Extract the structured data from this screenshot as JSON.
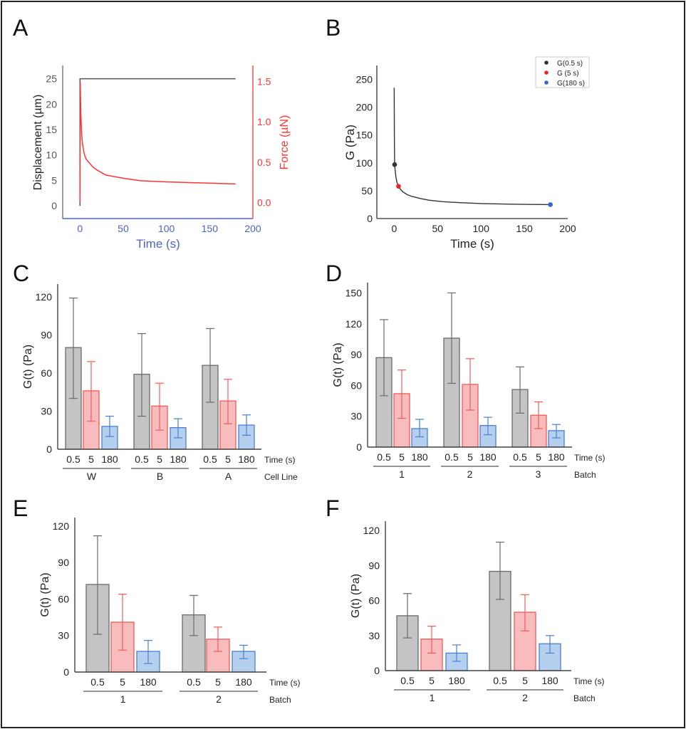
{
  "panel_labels": [
    "A",
    "B",
    "C",
    "D",
    "E",
    "F"
  ],
  "colors": {
    "gray_fill": "#c4c4c4",
    "gray_stroke": "#6b6b6b",
    "red_fill": "#f9bcbc",
    "red_stroke": "#f25a5a",
    "blue_fill": "#b5d0ef",
    "blue_stroke": "#4a7fd0",
    "force": "#ff3333",
    "time_axis": "#4f63c0",
    "g_curve": "#333333",
    "g05": "#333333",
    "g5": "#ee2222",
    "g180": "#3366cc"
  },
  "chart_data": [
    {
      "panel": "A",
      "type": "line",
      "xlabel": "Time (s)",
      "ylabel": "Displacement (µm)",
      "y2label": "Force (µN)",
      "xlim": [
        -20,
        200
      ],
      "ylim": [
        -2.5,
        27.6
      ],
      "y2lim": [
        -0.2,
        1.7
      ],
      "xticks": [
        "0",
        "50",
        "100",
        "150",
        "200"
      ],
      "yticks": [
        "0",
        "5",
        "10",
        "15",
        "20",
        "25"
      ],
      "y2ticks": [
        "0.0",
        "0.5",
        "1.0",
        "1.5"
      ],
      "displacement": {
        "x": [
          0,
          0,
          180
        ],
        "y": [
          0,
          25,
          25
        ]
      },
      "force": {
        "x": [
          0,
          0.3,
          1,
          2,
          3,
          5,
          7,
          10,
          15,
          20,
          30,
          40,
          50,
          70,
          100,
          130,
          150,
          180
        ],
        "y": [
          0,
          1.5,
          1.1,
          0.84,
          0.72,
          0.6,
          0.54,
          0.5,
          0.44,
          0.4,
          0.34,
          0.32,
          0.3,
          0.27,
          0.255,
          0.245,
          0.24,
          0.23
        ]
      }
    },
    {
      "panel": "B",
      "type": "line",
      "xlabel": "Time (s)",
      "ylabel": "G (Pa)",
      "xlim": [
        -20,
        200
      ],
      "ylim": [
        0,
        275
      ],
      "xticks": [
        "0",
        "50",
        "100",
        "150",
        "200"
      ],
      "yticks": [
        "0",
        "50",
        "100",
        "150",
        "200",
        "250"
      ],
      "curve": {
        "x": [
          0,
          0.2,
          0.5,
          1,
          2,
          3,
          5,
          7,
          10,
          15,
          20,
          30,
          40,
          55,
          70,
          100,
          130,
          150,
          180
        ],
        "y": [
          235,
          150,
          97,
          88,
          75,
          66,
          58,
          53,
          48,
          43,
          40,
          36,
          33,
          30.5,
          29,
          27,
          26,
          25.5,
          25
        ]
      },
      "points": [
        {
          "name": "G(0.5 s)",
          "x": 0.5,
          "y": 97
        },
        {
          "name": "G (5 s)",
          "x": 5,
          "y": 58
        },
        {
          "name": "G(180 s)",
          "x": 180,
          "y": 25
        }
      ],
      "legend": "top-right"
    },
    {
      "panel": "C",
      "type": "bar",
      "ylabel": "G(t) (Pa)",
      "xlabel": "Time (s)",
      "group_label": "Cell Line",
      "ylim": [
        0,
        130
      ],
      "yticks": [
        "0",
        "30",
        "60",
        "90",
        "120"
      ],
      "groups": [
        {
          "label": "W",
          "bars": [
            {
              "time": "0.5",
              "value": 80,
              "low": 40,
              "high": 119
            },
            {
              "time": "5",
              "value": 46,
              "low": 22,
              "high": 69
            },
            {
              "time": "180",
              "value": 18,
              "low": 10,
              "high": 26
            }
          ]
        },
        {
          "label": "B",
          "bars": [
            {
              "time": "0.5",
              "value": 59,
              "low": 26,
              "high": 91
            },
            {
              "time": "5",
              "value": 34,
              "low": 15,
              "high": 52
            },
            {
              "time": "180",
              "value": 17,
              "low": 9,
              "high": 24
            }
          ]
        },
        {
          "label": "A",
          "bars": [
            {
              "time": "0.5",
              "value": 66,
              "low": 37,
              "high": 95
            },
            {
              "time": "5",
              "value": 38,
              "low": 20,
              "high": 55
            },
            {
              "time": "180",
              "value": 19,
              "low": 11,
              "high": 27
            }
          ]
        }
      ]
    },
    {
      "panel": "D",
      "type": "bar",
      "ylabel": "G(t) (Pa)",
      "xlabel": "Time (s)",
      "group_label": "Batch",
      "ylim": [
        0,
        160
      ],
      "yticks": [
        "0",
        "30",
        "60",
        "90",
        "120",
        "150"
      ],
      "groups": [
        {
          "label": "1",
          "bars": [
            {
              "time": "0.5",
              "value": 87,
              "low": 50,
              "high": 124
            },
            {
              "time": "5",
              "value": 52,
              "low": 28,
              "high": 75
            },
            {
              "time": "180",
              "value": 18,
              "low": 10,
              "high": 27
            }
          ]
        },
        {
          "label": "2",
          "bars": [
            {
              "time": "0.5",
              "value": 106,
              "low": 62,
              "high": 150
            },
            {
              "time": "5",
              "value": 61,
              "low": 36,
              "high": 86
            },
            {
              "time": "180",
              "value": 21,
              "low": 12,
              "high": 29
            }
          ]
        },
        {
          "label": "3",
          "bars": [
            {
              "time": "0.5",
              "value": 56,
              "low": 33,
              "high": 78
            },
            {
              "time": "5",
              "value": 31,
              "low": 18,
              "high": 44
            },
            {
              "time": "180",
              "value": 16,
              "low": 9,
              "high": 22
            }
          ]
        }
      ]
    },
    {
      "panel": "E",
      "type": "bar",
      "ylabel": "G(t) (Pa)",
      "xlabel": "Time (s)",
      "group_label": "Batch",
      "ylim": [
        0,
        127
      ],
      "yticks": [
        "0",
        "30",
        "60",
        "90",
        "120"
      ],
      "groups": [
        {
          "label": "1",
          "bars": [
            {
              "time": "0.5",
              "value": 72,
              "low": 31,
              "high": 112
            },
            {
              "time": "5",
              "value": 41,
              "low": 18,
              "high": 64
            },
            {
              "time": "180",
              "value": 17,
              "low": 7,
              "high": 26
            }
          ]
        },
        {
          "label": "2",
          "bars": [
            {
              "time": "0.5",
              "value": 47,
              "low": 30,
              "high": 63
            },
            {
              "time": "5",
              "value": 27,
              "low": 17,
              "high": 37
            },
            {
              "time": "180",
              "value": 17,
              "low": 11,
              "high": 22
            }
          ]
        }
      ]
    },
    {
      "panel": "F",
      "type": "bar",
      "ylabel": "G(t) (Pa)",
      "xlabel": "Time (s)",
      "group_label": "Batch",
      "ylim": [
        0,
        128
      ],
      "yticks": [
        "0",
        "30",
        "60",
        "90",
        "120"
      ],
      "groups": [
        {
          "label": "1",
          "bars": [
            {
              "time": "0.5",
              "value": 47,
              "low": 28,
              "high": 66
            },
            {
              "time": "5",
              "value": 27,
              "low": 15,
              "high": 38
            },
            {
              "time": "180",
              "value": 15,
              "low": 8,
              "high": 22
            }
          ]
        },
        {
          "label": "2",
          "bars": [
            {
              "time": "0.5",
              "value": 85,
              "low": 61,
              "high": 110
            },
            {
              "time": "5",
              "value": 50,
              "low": 34,
              "high": 65
            },
            {
              "time": "180",
              "value": 23,
              "low": 15,
              "high": 30
            }
          ]
        }
      ]
    }
  ]
}
